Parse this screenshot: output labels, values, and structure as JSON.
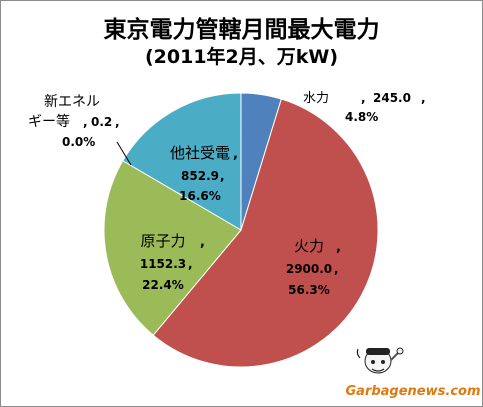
{
  "chart_data": {
    "type": "pie",
    "title": "東京電力管轄月間最大電力",
    "subtitle": "(2011年2月、万kW)",
    "slices": [
      {
        "name": "水力",
        "value": 245.0,
        "value_label": "245.0",
        "percent_label": "4.8%",
        "color": "#4f81bd"
      },
      {
        "name": "火力",
        "value": 2900.0,
        "value_label": "2900.0",
        "percent_label": "56.3%",
        "color": "#c0504d"
      },
      {
        "name": "原子力",
        "value": 1152.3,
        "value_label": "1152.3",
        "percent_label": "22.4%",
        "color": "#9bbb59"
      },
      {
        "name": "他社受電",
        "value": 852.9,
        "value_label": "852.9",
        "percent_label": "16.6%",
        "color": "#4bacc6"
      },
      {
        "name": "新エネルギー等",
        "value": 0.2,
        "value_label": "0.2",
        "percent_label": "0.0%",
        "color": "#8064a2"
      }
    ],
    "start_angle_deg": 0,
    "direction": "clockwise",
    "legend": "none"
  },
  "watermark": {
    "text": "Garbagenews.com"
  }
}
